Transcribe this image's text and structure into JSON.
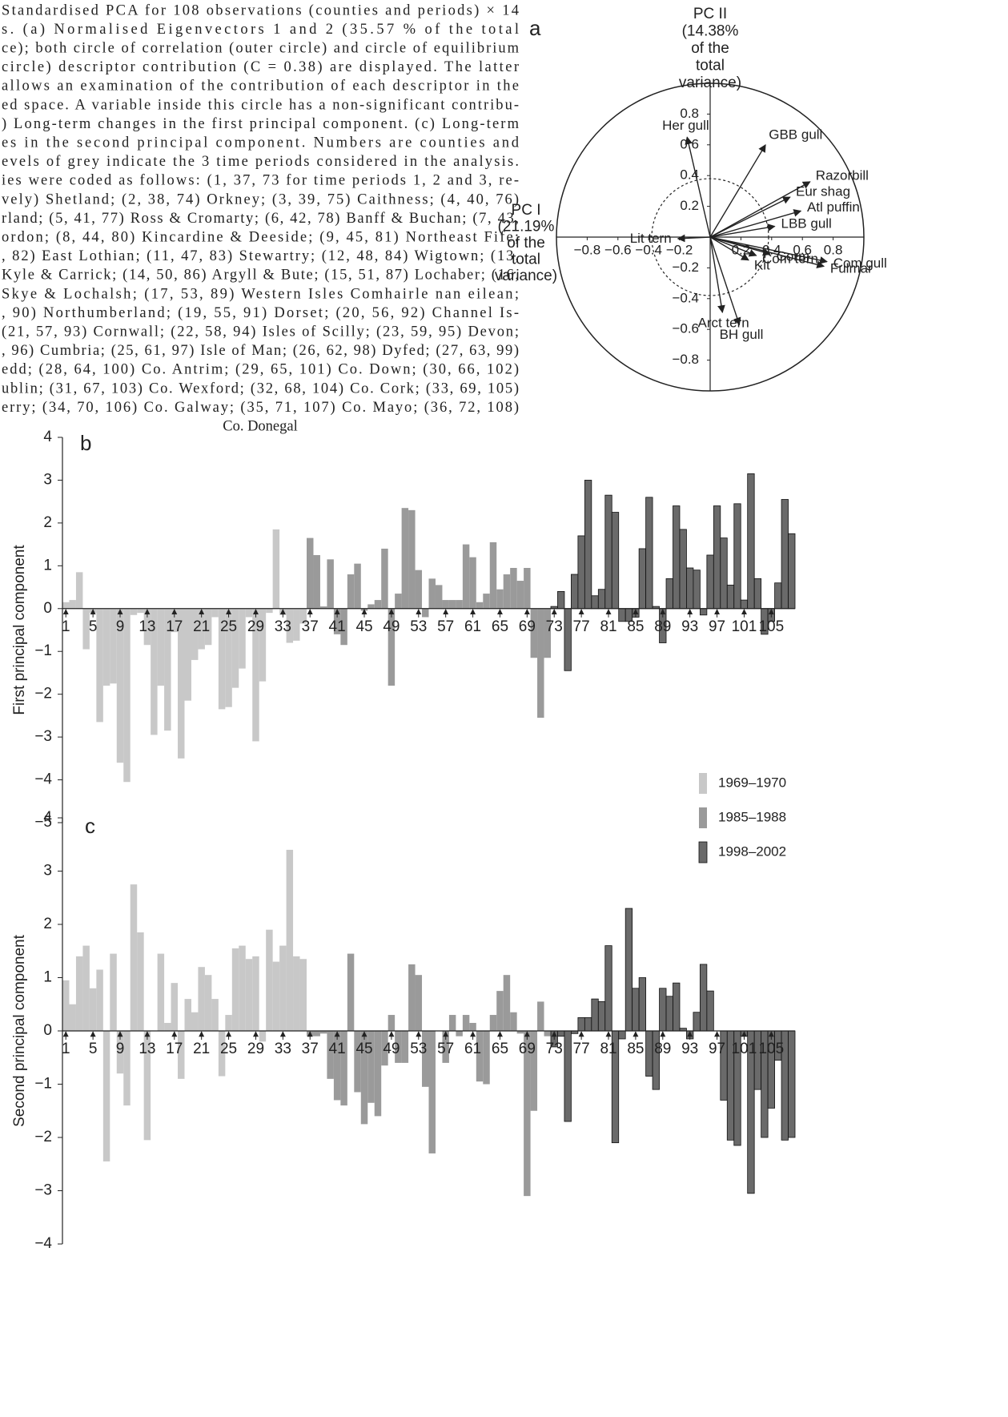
{
  "caption": [
    "Standardised PCA for 108 observations (counties and periods) × 14",
    "s. (a) Normalised Eigenvectors 1 and 2 (35.57 % of the total",
    "ce); both circle of correlation (outer circle) and circle of equilibrium",
    "circle) descriptor contribution (C = 0.38) are displayed. The latter",
    "allows an examination of the contribution of each descriptor in the",
    "ed space. A variable inside this circle has a non-significant contribu-",
    ") Long-term changes in the first principal component. (c) Long-term",
    "es in the second principal component. Numbers are counties and",
    "evels of grey indicate the 3 time periods considered in the analysis.",
    "ies were coded as follows: (1, 37, 73 for time periods 1, 2 and 3, re-",
    "vely) Shetland; (2, 38, 74) Orkney; (3, 39, 75) Caithness; (4, 40, 76)",
    "rland; (5, 41, 77) Ross & Cromarty; (6, 42, 78) Banff & Buchan; (7, 43,",
    "ordon; (8, 44, 80) Kincardine & Deeside; (9, 45, 81) Northeast Fife;",
    ", 82) East Lothian; (11, 47, 83) Stewartry; (12, 48, 84) Wigtown; (13,",
    "Kyle & Carrick; (14, 50, 86) Argyll & Bute; (15, 51, 87) Lochaber; (16,",
    "Skye & Lochalsh; (17, 53, 89) Western Isles Comhairle nan eilean;",
    ", 90) Northumberland; (19, 55, 91) Dorset; (20, 56, 92) Channel Is-",
    "(21, 57, 93) Cornwall; (22, 58, 94) Isles of Scilly; (23, 59, 95) Devon;",
    ", 96) Cumbria; (25, 61, 97) Isle of Man; (26, 62, 98) Dyfed; (27, 63, 99)",
    "edd; (28, 64, 100) Co. Antrim; (29, 65, 101) Co. Down; (30, 66, 102)",
    "ublin; (31, 67, 103) Co. Wexford; (32, 68, 104) Co. Cork; (33, 69, 105)",
    "erry; (34, 70, 106) Co. Galway; (35, 71, 107) Co. Mayo; (36, 72, 108)",
    "Co. Donegal"
  ],
  "chart_data": [
    {
      "type": "biplot",
      "panel_label": "a",
      "x_label": [
        "PC I",
        "(21.19%",
        "of the",
        "total",
        "variance)"
      ],
      "y_label": [
        "PC II",
        "(14.38%",
        "of the",
        "total",
        "variance)"
      ],
      "xlim": [
        -1,
        1
      ],
      "ylim": [
        -1,
        1
      ],
      "equilibrium_radius": 0.38,
      "xticks": [
        {
          "value": -0.8,
          "label": "−0.8"
        },
        {
          "value": -0.6,
          "label": "−0.6"
        },
        {
          "value": -0.4,
          "label": "−0.4"
        },
        {
          "value": -0.2,
          "label": "−0.2"
        },
        0.2,
        0.4,
        0.6,
        0.8
      ],
      "yticks": [
        0.8,
        0.6,
        0.4,
        0.2,
        {
          "value": -0.2,
          "label": "−0.2"
        },
        {
          "value": -0.4,
          "label": "−0.4"
        },
        {
          "value": -0.6,
          "label": "−0.6"
        },
        {
          "value": -0.8,
          "label": "−0.8"
        }
      ],
      "vectors": [
        {
          "label": "Her gull",
          "x": -0.15,
          "y": 0.65
        },
        {
          "label": "GBB gull",
          "x": 0.36,
          "y": 0.6
        },
        {
          "label": "Razorbill",
          "x": 0.65,
          "y": 0.36
        },
        {
          "label": "Eur shag",
          "x": 0.52,
          "y": 0.26
        },
        {
          "label": "Atl puffin",
          "x": 0.59,
          "y": 0.17
        },
        {
          "label": "LBB gull",
          "x": 0.42,
          "y": 0.07
        },
        {
          "label": "Lit tern",
          "x": -0.21,
          "y": -0.01
        },
        {
          "label": "Com gull",
          "x": 0.76,
          "y": -0.16
        },
        {
          "label": "Fulmar",
          "x": 0.74,
          "y": -0.19
        },
        {
          "label": "Corm",
          "x": 0.39,
          "y": -0.11
        },
        {
          "label": "Com tern",
          "x": 0.3,
          "y": -0.12
        },
        {
          "label": "Kit",
          "x": 0.25,
          "y": -0.15
        },
        {
          "label": "Arct tern",
          "x": 0.08,
          "y": -0.49
        },
        {
          "label": "BH gull",
          "x": 0.19,
          "y": -0.57
        }
      ]
    },
    {
      "type": "bar",
      "panel_label": "b",
      "y_label": "First principal component",
      "xlim": [
        0.5,
        108.5
      ],
      "ylim": [
        -5,
        4
      ],
      "xticks": [
        1,
        5,
        9,
        13,
        17,
        21,
        25,
        29,
        33,
        37,
        41,
        45,
        49,
        53,
        57,
        61,
        65,
        69,
        73,
        77,
        81,
        85,
        89,
        93,
        97,
        101,
        105
      ],
      "yticks": [
        4,
        3,
        2,
        1,
        0,
        {
          "value": -1,
          "label": "−1"
        },
        {
          "value": -2,
          "label": "−2"
        },
        {
          "value": -3,
          "label": "−3"
        },
        {
          "value": -4,
          "label": "−4"
        },
        {
          "value": -5,
          "label": "−5"
        }
      ],
      "legend": "lower right",
      "series": [
        {
          "name": "1969–1970",
          "color": "#c8c8c8",
          "x": [
            1,
            2,
            3,
            4,
            5,
            6,
            7,
            8,
            9,
            10,
            11,
            12,
            13,
            14,
            15,
            16,
            17,
            18,
            19,
            20,
            21,
            22,
            23,
            24,
            25,
            26,
            27,
            28,
            29,
            30,
            31,
            32,
            33,
            34,
            35,
            36
          ],
          "values": [
            0.15,
            0.2,
            0.85,
            -0.95,
            -0.1,
            -2.65,
            -1.8,
            -1.75,
            -3.6,
            -4.05,
            -0.15,
            -0.1,
            -0.85,
            -2.95,
            -1.8,
            -2.85,
            -0.55,
            -3.5,
            -2.15,
            -1.2,
            -0.95,
            -0.85,
            -0.2,
            -2.35,
            -2.3,
            -1.85,
            -1.4,
            -0.2,
            -3.1,
            -1.7,
            -0.1,
            1.85,
            -0.15,
            -0.8,
            -0.75,
            -0.35
          ]
        },
        {
          "name": "1985–1988",
          "color": "#9a9a9a",
          "x": [
            37,
            38,
            39,
            40,
            41,
            42,
            43,
            44,
            45,
            46,
            47,
            48,
            49,
            50,
            51,
            52,
            53,
            54,
            55,
            56,
            57,
            58,
            59,
            60,
            61,
            62,
            63,
            64,
            65,
            66,
            67,
            68,
            69,
            70,
            71,
            72
          ],
          "values": [
            1.65,
            1.25,
            0.05,
            1.15,
            -0.6,
            -0.85,
            0.8,
            1.05,
            -0.05,
            0.1,
            0.2,
            1.4,
            -1.8,
            0.35,
            2.35,
            2.3,
            0.9,
            -0.2,
            0.7,
            0.55,
            0.2,
            0.2,
            0.2,
            1.5,
            1.2,
            0.15,
            0.35,
            1.55,
            0.45,
            0.8,
            0.95,
            0.65,
            0.95,
            -1.15,
            -2.55,
            -1.15
          ]
        },
        {
          "name": "1998–2002",
          "color": "#6a6a6a",
          "edgecolor": "#111",
          "x": [
            73,
            74,
            75,
            76,
            77,
            78,
            79,
            80,
            81,
            82,
            83,
            84,
            85,
            86,
            87,
            88,
            89,
            90,
            91,
            92,
            93,
            94,
            95,
            96,
            97,
            98,
            99,
            100,
            101,
            102,
            103,
            104,
            105,
            106,
            107,
            108
          ],
          "values": [
            0.05,
            0.4,
            -1.45,
            0.8,
            1.7,
            3.0,
            0.3,
            0.45,
            2.65,
            2.25,
            -0.3,
            -0.3,
            -0.2,
            1.4,
            2.6,
            0.05,
            -0.8,
            0.7,
            2.4,
            1.85,
            0.95,
            0.9,
            -0.15,
            1.25,
            2.4,
            1.65,
            0.55,
            2.45,
            0.2,
            3.15,
            0.7,
            -0.6,
            -0.3,
            0.6,
            2.55,
            1.75
          ]
        }
      ]
    },
    {
      "type": "bar",
      "panel_label": "c",
      "y_label": "Second principal component",
      "xlim": [
        0.5,
        108.5
      ],
      "ylim": [
        -4,
        4
      ],
      "xticks": [
        1,
        5,
        9,
        13,
        17,
        21,
        25,
        29,
        33,
        37,
        41,
        45,
        49,
        53,
        57,
        61,
        65,
        69,
        73,
        77,
        81,
        85,
        89,
        93,
        97,
        101,
        105
      ],
      "yticks": [
        4,
        3,
        2,
        1,
        0,
        {
          "value": -1,
          "label": "−1"
        },
        {
          "value": -2,
          "label": "−2"
        },
        {
          "value": -3,
          "label": "−3"
        },
        {
          "value": -4,
          "label": "−4"
        }
      ],
      "series": [
        {
          "color": "#c8c8c8",
          "x": [
            1,
            2,
            3,
            4,
            5,
            6,
            7,
            8,
            9,
            10,
            11,
            12,
            13,
            14,
            15,
            16,
            17,
            18,
            19,
            20,
            21,
            22,
            23,
            24,
            25,
            26,
            27,
            28,
            29,
            30,
            31,
            32,
            33,
            34,
            35,
            36
          ],
          "values": [
            0.95,
            0.5,
            1.4,
            1.6,
            0.8,
            1.15,
            -2.45,
            1.45,
            -0.8,
            -1.4,
            2.75,
            1.85,
            -2.05,
            0,
            1.45,
            0.15,
            0.9,
            -0.9,
            0.6,
            0.35,
            1.2,
            1.05,
            0.6,
            -0.85,
            0.3,
            1.55,
            1.6,
            1.35,
            1.4,
            -0.2,
            1.9,
            1.3,
            1.6,
            3.4,
            1.4,
            1.35
          ]
        },
        {
          "color": "#9a9a9a",
          "x": [
            37,
            38,
            39,
            40,
            41,
            42,
            43,
            44,
            45,
            46,
            47,
            48,
            49,
            50,
            51,
            52,
            53,
            54,
            55,
            56,
            57,
            58,
            59,
            60,
            61,
            62,
            63,
            64,
            65,
            66,
            67,
            68,
            69,
            70,
            71,
            72
          ],
          "values": [
            -0.1,
            -0.1,
            -0.05,
            -0.9,
            -1.3,
            -1.4,
            1.45,
            -1.15,
            -1.75,
            -1.35,
            -1.6,
            -0.65,
            0.3,
            -0.6,
            -0.6,
            1.25,
            1.05,
            -1.05,
            -2.3,
            0,
            -0.6,
            0.3,
            -0.1,
            0.3,
            0.15,
            -0.95,
            -1.0,
            0.3,
            0.75,
            1.05,
            0.35,
            -0.05,
            -3.1,
            -1.5,
            0.55,
            -0.1
          ]
        },
        {
          "color": "#6a6a6a",
          "edgecolor": "#111",
          "x": [
            73,
            74,
            75,
            76,
            77,
            78,
            79,
            80,
            81,
            82,
            83,
            84,
            85,
            86,
            87,
            88,
            89,
            90,
            91,
            92,
            93,
            94,
            95,
            96,
            97,
            98,
            99,
            100,
            101,
            102,
            103,
            104,
            105,
            106,
            107,
            108
          ],
          "values": [
            -0.3,
            -0.1,
            -1.7,
            -0.05,
            0.25,
            0.25,
            0.6,
            0.55,
            1.6,
            -2.1,
            -0.15,
            2.3,
            0.8,
            1.0,
            -0.85,
            -1.1,
            0.8,
            0.65,
            0.9,
            0.05,
            -0.15,
            0.35,
            1.25,
            0.75,
            0,
            -1.3,
            -2.05,
            -2.15,
            -0.1,
            -3.05,
            -1.1,
            -2.0,
            -1.45,
            -0.55,
            -2.05,
            -2.0
          ]
        }
      ]
    }
  ]
}
